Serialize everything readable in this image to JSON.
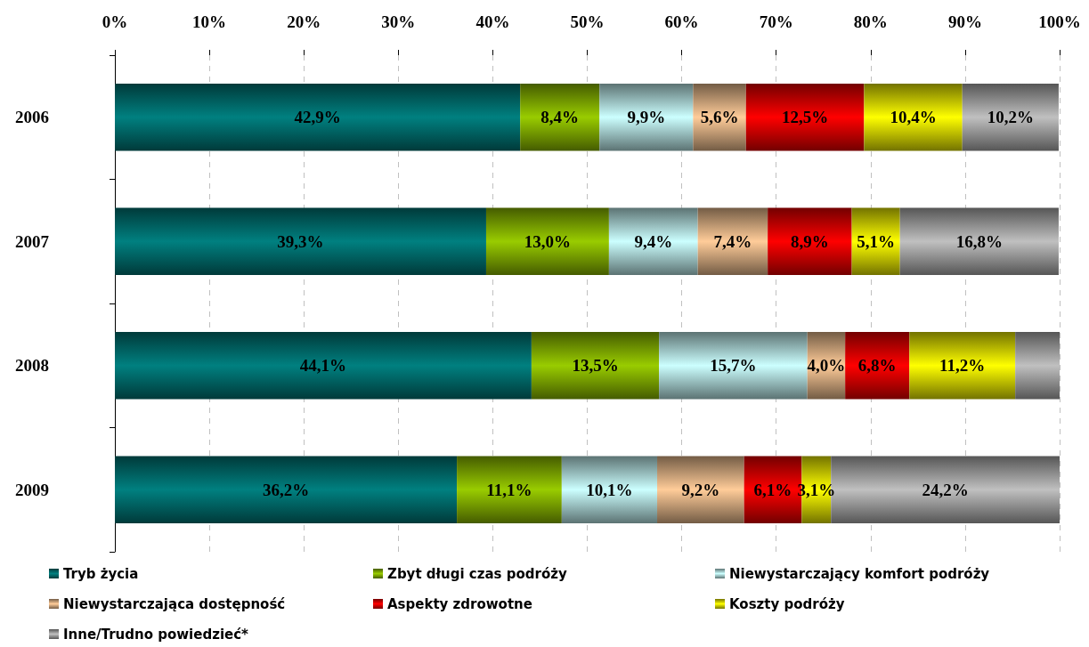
{
  "chart_data": {
    "type": "bar",
    "orientation": "horizontal",
    "stacked": true,
    "categories": [
      "2006",
      "2007",
      "2008",
      "2009"
    ],
    "series": [
      {
        "name": "Tryb życia",
        "color": "#008080",
        "values": [
          42.9,
          39.3,
          44.1,
          36.2
        ],
        "value_labels": [
          "42,9%",
          "39,3%",
          "44,1%",
          "36,2%"
        ]
      },
      {
        "name": "Zbyt długi czas podróży",
        "color": "#99cc00",
        "values": [
          8.4,
          13.0,
          13.5,
          11.1
        ],
        "value_labels": [
          "8,4%",
          "13,0%",
          "13,5%",
          "11,1%"
        ]
      },
      {
        "name": "Niewystarczający komfort podróży",
        "color": "#ccffff",
        "values": [
          9.9,
          9.4,
          15.7,
          10.1
        ],
        "value_labels": [
          "9,9%",
          "9,4%",
          "15,7%",
          "10,1%"
        ]
      },
      {
        "name": "Niewystarczająca dostępność",
        "color": "#ffcc99",
        "values": [
          5.6,
          7.4,
          4.0,
          9.2
        ],
        "value_labels": [
          "5,6%",
          "7,4%",
          "4,0%",
          "9,2%"
        ]
      },
      {
        "name": "Aspekty zdrowotne",
        "color": "#ff0000",
        "values": [
          12.5,
          8.9,
          6.8,
          6.1
        ],
        "value_labels": [
          "12,5%",
          "8,9%",
          "6,8%",
          "6,1%"
        ]
      },
      {
        "name": "Koszty podróży",
        "color": "#ffff00",
        "values": [
          10.4,
          5.1,
          11.2,
          3.1
        ],
        "value_labels": [
          "10,4%",
          "5,1%",
          "11,2%",
          "3,1%"
        ]
      },
      {
        "name": "Inne/Trudno powiedzieć*",
        "color": "#c0c0c0",
        "values": [
          10.2,
          16.8,
          4.7,
          24.2
        ],
        "value_labels": [
          "10,2%",
          "16,8%",
          null,
          "24,2%"
        ]
      }
    ],
    "xlim": [
      0,
      100
    ],
    "xticks": [
      {
        "value": 0,
        "label": "0%"
      },
      {
        "value": 10,
        "label": "10%"
      },
      {
        "value": 20,
        "label": "20%"
      },
      {
        "value": 30,
        "label": "30%"
      },
      {
        "value": 40,
        "label": "40%"
      },
      {
        "value": 50,
        "label": "50%"
      },
      {
        "value": 60,
        "label": "60%"
      },
      {
        "value": 70,
        "label": "70%"
      },
      {
        "value": 80,
        "label": "80%"
      },
      {
        "value": 90,
        "label": "90%"
      },
      {
        "value": 100,
        "label": "100%"
      }
    ],
    "grid": "x",
    "legend": "bottom"
  }
}
